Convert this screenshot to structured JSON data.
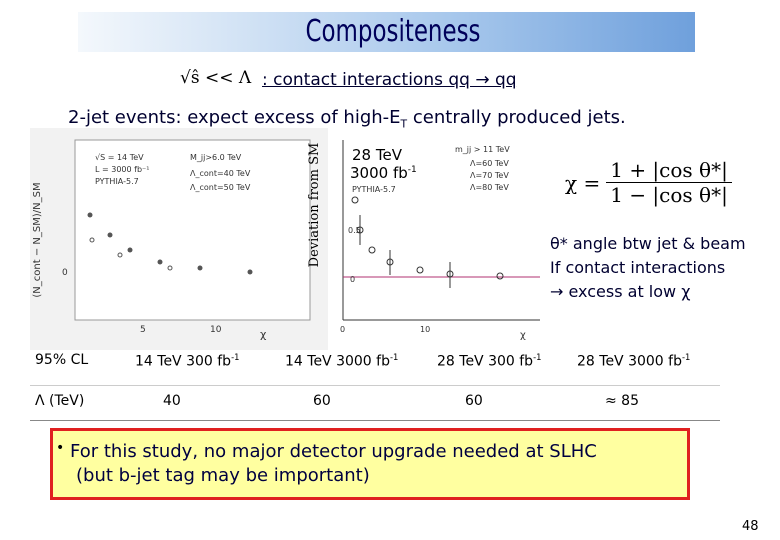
{
  "header": {
    "title": "Compositeness"
  },
  "intro": {
    "formula": "√ŝ << Λ",
    "text": ": contact interactions qq → qq"
  },
  "statement": {
    "before": "2-jet events: expect excess of high-E",
    "sub": "T",
    "after": " centrally produced jets."
  },
  "plots": {
    "left": {
      "y_label": "(N_cont − N_SM)/N_SM",
      "x_label": "χ",
      "legend": [
        "√S = 14 TeV",
        "L = 3000 fb⁻¹",
        "PYTHIA-5.7",
        "M_jj>6.0 TeV",
        "Λ_cont=40 TeV",
        "Λ_cont=50 TeV"
      ],
      "ticks": [
        "0",
        "5",
        "10"
      ]
    },
    "right": {
      "y_label": "Deviation from SM",
      "energy": "28 TeV",
      "lumi": "3000 fb",
      "lumi_sup": "-1",
      "legend": [
        "m_jj > 11 TeV",
        "Λ=60 TeV",
        "Λ=70 TeV",
        "Λ=80 TeV",
        "PYTHIA-5.7"
      ],
      "yticks": [
        "0.5",
        "0"
      ],
      "xticks": [
        "0",
        "10"
      ],
      "x_label": "χ"
    }
  },
  "chi": {
    "lhs": "χ =",
    "num": "1 + |cos θ*|",
    "den": "1 − |cos θ*|"
  },
  "notes": [
    "θ* angle btw jet & beam",
    "If contact interactions",
    "→ excess at low χ"
  ],
  "table": {
    "rows": [
      [
        {
          "text": "95% CL"
        },
        {
          "text": "14 TeV 300 fb",
          "sup": "-1"
        },
        {
          "text": "14 TeV 3000 fb",
          "sup": "-1"
        },
        {
          "text": "28 TeV 300 fb",
          "sup": "-1"
        },
        {
          "text": "28 TeV 3000 fb",
          "sup": "-1"
        }
      ],
      [
        {
          "text": "Λ (TeV)"
        },
        {
          "text": "40"
        },
        {
          "text": "60"
        },
        {
          "text": "60"
        },
        {
          "text": "≈ 85"
        }
      ]
    ]
  },
  "box": {
    "bullet": "•",
    "lines": [
      "For this study, no major detector upgrade needed at SLHC",
      "(but b-jet tag may be important)"
    ]
  },
  "footer": {
    "page": "48"
  }
}
